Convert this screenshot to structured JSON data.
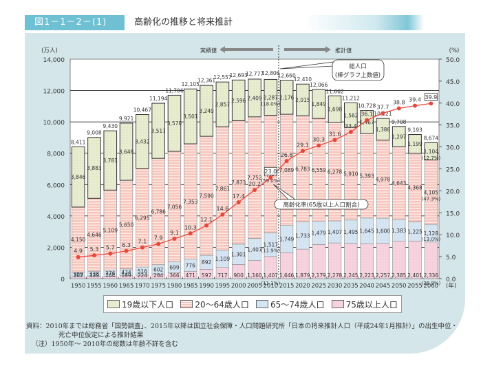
{
  "header": {
    "figure_label": "図1－1－2－(1)",
    "title": "高齢化の推移と将来推計"
  },
  "chart_data": {
    "type": "bar",
    "subtype": "stacked-bar-with-line",
    "title": "高齢化の推移と将来推計",
    "ylabel_left": "(万人)",
    "ylabel_right": "(%)",
    "xlabel_suffix": "(年)",
    "ylim_left": [
      0,
      14000
    ],
    "ylim_right": [
      0,
      50
    ],
    "yticks_left": [
      "0",
      "2,000",
      "4,000",
      "6,000",
      "8,000",
      "10,000",
      "12,000",
      "14,000"
    ],
    "yticks_right": [
      "0.0",
      "5.0",
      "10.0",
      "15.0",
      "20.0",
      "25.0",
      "30.0",
      "35.0",
      "40.0",
      "45.0",
      "50.0"
    ],
    "categories": [
      "1950",
      "1955",
      "1960",
      "1965",
      "1970",
      "1975",
      "1980",
      "1985",
      "1990",
      "1995",
      "2000",
      "2005",
      "2010",
      "2015",
      "2020",
      "2025",
      "2030",
      "2035",
      "2040",
      "2045",
      "2050",
      "2055",
      "2060"
    ],
    "series": [
      {
        "name": "75歳以上人口",
        "color": "#f6d3df",
        "values": [
          107,
          139,
          164,
          189,
          224,
          284,
          366,
          471,
          597,
          717,
          900,
          1160,
          1407,
          1646,
          1879,
          2179,
          2278,
          2245,
          2223,
          2257,
          2385,
          2401,
          2336
        ]
      },
      {
        "name": "65～74歳人口",
        "color": "#d6e5f2",
        "values": [
          309,
          338,
          376,
          434,
          516,
          602,
          699,
          776,
          892,
          1109,
          1301,
          1407,
          1517,
          1749,
          1733,
          1479,
          1407,
          1495,
          1645,
          1600,
          1383,
          1225,
          1128
        ]
      },
      {
        "name": "20～64歳人口",
        "color": "#f6c6bc",
        "values": [
          4150,
          4646,
          5109,
          5650,
          6295,
          6786,
          7056,
          7353,
          7590,
          7861,
          7873,
          7752,
          7497,
          7089,
          6783,
          6559,
          6278,
          5910,
          5393,
          4978,
          4643,
          4368,
          4105
        ]
      },
      {
        "name": "19歳以下人口",
        "color": "#e8ecd0",
        "values": [
          3846,
          3883,
          3781,
          3648,
          3432,
          3517,
          3578,
          3501,
          3249,
          2857,
          2596,
          2409,
          2287,
          2176,
          2015,
          1849,
          1698,
          1562,
          1467,
          1386,
          1297,
          1199,
          1104
        ]
      }
    ],
    "totals": [
      8411,
      9008,
      9430,
      9921,
      10467,
      11194,
      11706,
      12105,
      12361,
      12557,
      12693,
      12777,
      12806,
      12660,
      12410,
      12066,
      11662,
      11212,
      10728,
      10221,
      9708,
      9193,
      8674
    ],
    "totals_labels": [
      "8,411",
      "9,008",
      "9,430",
      "9,921",
      "10,467",
      "11,194",
      "11,706",
      "12,105",
      "12,361",
      "12,557",
      "12,693",
      "12,777",
      "12,806",
      "12,660",
      "12,410",
      "12,066",
      "11,662",
      "11,212",
      "10,728",
      "10,221",
      "9,708",
      "9,193",
      "8,674"
    ],
    "line": {
      "name": "高齢化率(65歳以上人口割合)",
      "color": "#e8483c",
      "axis": "right",
      "values": [
        4.9,
        5.3,
        5.7,
        6.3,
        7.1,
        7.9,
        9.1,
        10.3,
        12.1,
        14.6,
        17.4,
        20.2,
        23.0,
        26.8,
        29.1,
        30.3,
        31.6,
        33.4,
        36.1,
        37.7,
        38.8,
        39.4,
        39.9
      ]
    },
    "percent_annotations": {
      "2010": {
        "19歳以下人口": "(18.0%)",
        "20～64歳人口": "(59.0%)",
        "65～74歳人口": "(11.9%)",
        "75歳以上人口": "(11.1%)"
      },
      "2060": {
        "19歳以下人口": "(12.7%)",
        "20～64歳人口": "(47.3%)",
        "65～74歳人口": "(13.0%)",
        "75歳以上人口": "(26.9%)"
      }
    },
    "annotations": {
      "actual": "実績値",
      "projected": "推計値",
      "total_callout": [
        "総人口",
        "(棒グラフ上数値)"
      ],
      "rate_callout": "高齢化率(65歳以上人口割合)"
    },
    "legend": [
      {
        "label": "19歳以下人口",
        "color": "#e8ecd0"
      },
      {
        "label": "20～64歳人口",
        "color": "#f6c6bc"
      },
      {
        "label": "65～74歳人口",
        "color": "#d6e5f2"
      },
      {
        "label": "75歳以上人口",
        "color": "#f6d3df"
      }
    ],
    "legend_position": "bottom"
  },
  "notes": {
    "source_line1": "資料：2010年までは総務省「国勢調査」、2015年以降は国立社会保障・人口問題研究所「日本の将来推計人口（平成24年1月推計）」の出生中位・",
    "source_line2": "死亡中位仮定による推計結果",
    "note": "（注）1950年～ 2010年の総数は年齢不詳を含む"
  }
}
